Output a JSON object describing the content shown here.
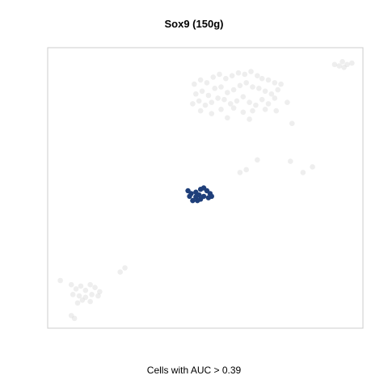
{
  "title": "Sox9 (150g)",
  "caption": "Cells with AUC > 0.39",
  "colors": {
    "highlight": "#1f3f7a",
    "background_cells": "#d9d9d9",
    "frame": "#cccccc"
  },
  "chart_data": {
    "type": "scatter",
    "title": "Sox9 (150g)",
    "xlabel": "",
    "ylabel": "",
    "axes_visible": false,
    "grid": false,
    "legend": "none",
    "xlim": [
      0,
      100
    ],
    "ylim": [
      0,
      100
    ],
    "series": [
      {
        "role": "other cells",
        "color": "#d9d9d9",
        "points": [
          [
            46.5,
            87.0
          ],
          [
            48.5,
            88.5
          ],
          [
            50.5,
            87.5
          ],
          [
            52.5,
            89.5
          ],
          [
            54.5,
            90.5
          ],
          [
            56.5,
            89.0
          ],
          [
            58.5,
            90.0
          ],
          [
            60.5,
            91.0
          ],
          [
            62.5,
            90.5
          ],
          [
            64.5,
            91.5
          ],
          [
            66.5,
            90.0
          ],
          [
            68.0,
            89.0
          ],
          [
            70.0,
            88.5
          ],
          [
            72.0,
            87.5
          ],
          [
            74.0,
            87.0
          ],
          [
            47.0,
            83.5
          ],
          [
            49.0,
            84.5
          ],
          [
            51.0,
            83.0
          ],
          [
            53.0,
            85.5
          ],
          [
            55.0,
            86.0
          ],
          [
            57.0,
            84.0
          ],
          [
            59.0,
            85.0
          ],
          [
            61.0,
            86.5
          ],
          [
            63.0,
            87.5
          ],
          [
            65.0,
            86.0
          ],
          [
            67.0,
            85.5
          ],
          [
            69.0,
            84.5
          ],
          [
            71.0,
            83.5
          ],
          [
            73.0,
            85.0
          ],
          [
            46.0,
            80.0
          ],
          [
            48.0,
            81.0
          ],
          [
            50.0,
            79.5
          ],
          [
            52.0,
            80.5
          ],
          [
            54.0,
            82.0
          ],
          [
            56.0,
            81.5
          ],
          [
            58.0,
            80.0
          ],
          [
            60.0,
            81.0
          ],
          [
            62.0,
            82.5
          ],
          [
            64.0,
            80.5
          ],
          [
            66.0,
            79.5
          ],
          [
            68.0,
            81.5
          ],
          [
            70.0,
            80.0
          ],
          [
            72.0,
            82.0
          ],
          [
            76.0,
            80.5
          ],
          [
            48.5,
            77.5
          ],
          [
            52.0,
            76.5
          ],
          [
            55.0,
            78.0
          ],
          [
            59.0,
            78.5
          ],
          [
            62.0,
            77.0
          ],
          [
            65.0,
            77.5
          ],
          [
            69.0,
            78.0
          ],
          [
            72.5,
            77.5
          ],
          [
            57.0,
            75.0
          ],
          [
            64.0,
            74.5
          ],
          [
            77.5,
            73.0
          ],
          [
            61.0,
            55.5
          ],
          [
            63.0,
            56.5
          ],
          [
            66.5,
            60.0
          ],
          [
            77.0,
            59.5
          ],
          [
            81.0,
            55.5
          ],
          [
            84.0,
            57.5
          ],
          [
            91.0,
            94.0
          ],
          [
            92.5,
            93.5
          ],
          [
            93.5,
            95.0
          ],
          [
            95.0,
            94.0
          ],
          [
            96.5,
            94.5
          ],
          [
            94.0,
            93.0
          ],
          [
            23.0,
            20.0
          ],
          [
            24.5,
            21.5
          ],
          [
            4.0,
            17.0
          ],
          [
            7.5,
            15.5
          ],
          [
            9.0,
            14.0
          ],
          [
            10.5,
            15.0
          ],
          [
            12.0,
            13.5
          ],
          [
            13.5,
            15.5
          ],
          [
            15.0,
            14.5
          ],
          [
            16.5,
            13.0
          ],
          [
            8.0,
            12.0
          ],
          [
            10.0,
            11.5
          ],
          [
            12.0,
            11.0
          ],
          [
            14.0,
            12.0
          ],
          [
            16.0,
            11.5
          ],
          [
            11.0,
            10.0
          ],
          [
            13.5,
            9.5
          ],
          [
            9.5,
            9.0
          ],
          [
            8.5,
            3.5
          ],
          [
            7.5,
            4.5
          ]
        ]
      },
      {
        "role": "cells with AUC > 0.39",
        "color": "#1f3f7a",
        "points": [
          [
            44.5,
            49.0
          ],
          [
            45.5,
            48.0
          ],
          [
            47.0,
            48.5
          ],
          [
            48.5,
            49.5
          ],
          [
            49.5,
            50.0
          ],
          [
            50.5,
            49.0
          ],
          [
            51.5,
            48.0
          ],
          [
            52.0,
            47.0
          ],
          [
            51.0,
            46.5
          ],
          [
            49.5,
            47.0
          ],
          [
            48.5,
            46.0
          ],
          [
            47.5,
            45.5
          ],
          [
            46.0,
            45.5
          ],
          [
            45.0,
            47.0
          ],
          [
            48.0,
            47.5
          ],
          [
            47.0,
            46.8
          ]
        ]
      }
    ]
  }
}
